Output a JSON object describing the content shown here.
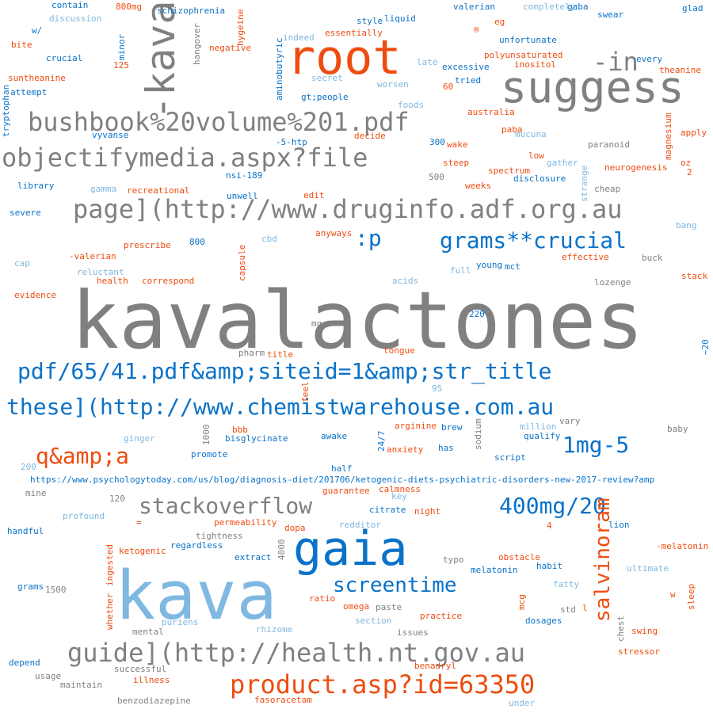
{
  "palette": {
    "gray": "#808080",
    "blue": "#0a72c8",
    "lightblue": "#7fb8e0",
    "orange": "#ee4d10"
  },
  "words": [
    {
      "text": "kavalactones",
      "color": "gray"
    },
    {
      "text": "kava",
      "color": "lightblue"
    },
    {
      "text": "root",
      "color": "orange"
    },
    {
      "text": "suggess",
      "color": "gray"
    },
    {
      "text": "-kava",
      "color": "gray"
    },
    {
      "text": "gaia",
      "color": "blue"
    },
    {
      "text": "-in",
      "color": "gray"
    },
    {
      "text": "bushbook%20volume%201.pdf",
      "color": "gray"
    },
    {
      "text": "objectifymedia.aspx?file",
      "color": "gray"
    },
    {
      "text": "page](http://www.druginfo.adf.org.au",
      "color": "gray"
    },
    {
      "text": ":p",
      "color": "blue"
    },
    {
      "text": "grams**crucial",
      "color": "blue"
    },
    {
      "text": "pdf/65/41.pdf&amp;siteid=1&amp;str_title",
      "color": "blue"
    },
    {
      "text": "these](http://www.chemistwarehouse.com.au",
      "color": "blue"
    },
    {
      "text": "q&amp;a",
      "color": "orange"
    },
    {
      "text": "1mg-5",
      "color": "blue"
    },
    {
      "text": "stackoverflow",
      "color": "gray"
    },
    {
      "text": "400mg/20",
      "color": "blue"
    },
    {
      "text": "salvinoram",
      "color": "orange"
    },
    {
      "text": "screentime",
      "color": "blue"
    },
    {
      "text": "guide](http://health.nt.gov.au",
      "color": "gray"
    },
    {
      "text": "product.asp?id=63350",
      "color": "orange"
    },
    {
      "text": "https://www.psychologytoday.com/us/blog/diagnosis-diet/201706/ketogenic-diets-psychiatric-disorders-new-2017-review?amp",
      "color": "blue"
    },
    {
      "text": "contain",
      "color": "blue"
    },
    {
      "text": "800mg",
      "color": "orange"
    },
    {
      "text": "schizophrenia",
      "color": "blue"
    },
    {
      "text": "discussion",
      "color": "lightblue"
    },
    {
      "text": "w/",
      "color": "blue"
    },
    {
      "text": "bite",
      "color": "orange"
    },
    {
      "text": "crucial",
      "color": "blue"
    },
    {
      "text": "125",
      "color": "orange"
    },
    {
      "text": "minor",
      "color": "blue"
    },
    {
      "text": "suntheanine",
      "color": "orange"
    },
    {
      "text": "attempt",
      "color": "blue"
    },
    {
      "text": "tryptophan",
      "color": "blue"
    },
    {
      "text": "hangover",
      "color": "gray"
    },
    {
      "text": "hygeine",
      "color": "orange"
    },
    {
      "text": "negative",
      "color": "orange"
    },
    {
      "text": "aminobutyric",
      "color": "blue"
    },
    {
      "text": "indeed",
      "color": "lightblue"
    },
    {
      "text": "essentially",
      "color": "orange"
    },
    {
      "text": "style",
      "color": "blue"
    },
    {
      "text": "liquid",
      "color": "blue"
    },
    {
      "text": "®",
      "color": "orange"
    },
    {
      "text": "valerian",
      "color": "blue"
    },
    {
      "text": "completely",
      "color": "lightblue"
    },
    {
      "text": "gaba",
      "color": "blue"
    },
    {
      "text": "swear",
      "color": "blue"
    },
    {
      "text": "glad",
      "color": "blue"
    },
    {
      "text": "eg",
      "color": "orange"
    },
    {
      "text": "unfortunate",
      "color": "blue"
    },
    {
      "text": "polyunsaturated",
      "color": "orange"
    },
    {
      "text": "every",
      "color": "blue"
    },
    {
      "text": "theanine",
      "color": "orange"
    },
    {
      "text": "late",
      "color": "lightblue"
    },
    {
      "text": "excessive",
      "color": "blue"
    },
    {
      "text": "inositol",
      "color": "orange"
    },
    {
      "text": "secret",
      "color": "lightblue"
    },
    {
      "text": "worsen",
      "color": "lightblue"
    },
    {
      "text": "60",
      "color": "orange"
    },
    {
      "text": "tried",
      "color": "blue"
    },
    {
      "text": "gt;people",
      "color": "blue"
    },
    {
      "text": "foods",
      "color": "lightblue"
    },
    {
      "text": "australia",
      "color": "orange"
    },
    {
      "text": "magnesium",
      "color": "orange"
    },
    {
      "text": "paba",
      "color": "orange"
    },
    {
      "text": "mucuna",
      "color": "lightblue"
    },
    {
      "text": "apply",
      "color": "orange"
    },
    {
      "text": "vyvanse",
      "color": "blue"
    },
    {
      "text": "-5-htp",
      "color": "blue"
    },
    {
      "text": "decide",
      "color": "orange"
    },
    {
      "text": "300",
      "color": "blue"
    },
    {
      "text": "wake",
      "color": "orange"
    },
    {
      "text": "paranoid",
      "color": "gray"
    },
    {
      "text": "low",
      "color": "orange"
    },
    {
      "text": "oz",
      "color": "orange"
    },
    {
      "text": "2",
      "color": "orange"
    },
    {
      "text": "gather",
      "color": "lightblue"
    },
    {
      "text": "steep",
      "color": "orange"
    },
    {
      "text": "neurogenesis",
      "color": "orange"
    },
    {
      "text": "spectrum",
      "color": "orange"
    },
    {
      "text": "disclosure",
      "color": "blue"
    },
    {
      "text": "500",
      "color": "gray"
    },
    {
      "text": "nsi-189",
      "color": "blue"
    },
    {
      "text": "strange",
      "color": "lightblue"
    },
    {
      "text": "library",
      "color": "blue"
    },
    {
      "text": "gamma",
      "color": "lightblue"
    },
    {
      "text": "recreational",
      "color": "orange"
    },
    {
      "text": "weeks",
      "color": "orange"
    },
    {
      "text": "cheap",
      "color": "gray"
    },
    {
      "text": "severe",
      "color": "blue"
    },
    {
      "text": "unwell",
      "color": "blue"
    },
    {
      "text": "edit",
      "color": "orange"
    },
    {
      "text": "anyways",
      "color": "orange"
    },
    {
      "text": "bang",
      "color": "lightblue"
    },
    {
      "text": "cbd",
      "color": "lightblue"
    },
    {
      "text": "800",
      "color": "blue"
    },
    {
      "text": "prescribe",
      "color": "orange"
    },
    {
      "text": "-valerian",
      "color": "orange"
    },
    {
      "text": "capsule",
      "color": "orange"
    },
    {
      "text": "effective",
      "color": "orange"
    },
    {
      "text": "buck",
      "color": "gray"
    },
    {
      "text": "cap",
      "color": "lightblue"
    },
    {
      "text": "young",
      "color": "blue"
    },
    {
      "text": "mct",
      "color": "blue"
    },
    {
      "text": "reluctant",
      "color": "lightblue"
    },
    {
      "text": "full",
      "color": "lightblue"
    },
    {
      "text": "stack",
      "color": "orange"
    },
    {
      "text": "health",
      "color": "orange"
    },
    {
      "text": "correspond",
      "color": "orange"
    },
    {
      "text": "acids",
      "color": "lightblue"
    },
    {
      "text": "lozenge",
      "color": "gray"
    },
    {
      "text": "evidence",
      "color": "orange"
    },
    {
      "text": "220",
      "color": "blue"
    },
    {
      "text": "mg",
      "color": "gray"
    },
    {
      "text": "~20",
      "color": "blue"
    },
    {
      "text": "pharm",
      "color": "gray"
    },
    {
      "text": "title",
      "color": "orange"
    },
    {
      "text": "tongue",
      "color": "orange"
    },
    {
      "text": "95",
      "color": "lightblue"
    },
    {
      "text": "feel",
      "color": "orange"
    },
    {
      "text": "bbb",
      "color": "orange"
    },
    {
      "text": "arginine",
      "color": "orange"
    },
    {
      "text": "brew",
      "color": "blue"
    },
    {
      "text": "million",
      "color": "lightblue"
    },
    {
      "text": "vary",
      "color": "gray"
    },
    {
      "text": "baby",
      "color": "gray"
    },
    {
      "text": "ginger",
      "color": "lightblue"
    },
    {
      "text": "1000",
      "color": "gray"
    },
    {
      "text": "bisglycinate",
      "color": "blue"
    },
    {
      "text": "awake",
      "color": "blue"
    },
    {
      "text": "24/7",
      "color": "blue"
    },
    {
      "text": "sodium",
      "color": "gray"
    },
    {
      "text": "qualify",
      "color": "blue"
    },
    {
      "text": "promote",
      "color": "blue"
    },
    {
      "text": "anxiety",
      "color": "orange"
    },
    {
      "text": "has",
      "color": "blue"
    },
    {
      "text": "script",
      "color": "blue"
    },
    {
      "text": "200",
      "color": "lightblue"
    },
    {
      "text": "half",
      "color": "blue"
    },
    {
      "text": "mine",
      "color": "gray"
    },
    {
      "text": "guarantee",
      "color": "orange"
    },
    {
      "text": "calmness",
      "color": "orange"
    },
    {
      "text": "key",
      "color": "lightblue"
    },
    {
      "text": "120",
      "color": "gray"
    },
    {
      "text": "profound",
      "color": "lightblue"
    },
    {
      "text": "=",
      "color": "orange"
    },
    {
      "text": "citrate",
      "color": "blue"
    },
    {
      "text": "night",
      "color": "orange"
    },
    {
      "text": "permeability",
      "color": "orange"
    },
    {
      "text": "dopa",
      "color": "orange"
    },
    {
      "text": "redditor",
      "color": "lightblue"
    },
    {
      "text": "4",
      "color": "orange"
    },
    {
      "text": "lion",
      "color": "blue"
    },
    {
      "text": "handful",
      "color": "blue"
    },
    {
      "text": "tightness",
      "color": "gray"
    },
    {
      "text": "regardless",
      "color": "blue"
    },
    {
      "text": "4000",
      "color": "gray"
    },
    {
      "text": "ketogenic",
      "color": "orange"
    },
    {
      "text": "-melatonin",
      "color": "orange"
    },
    {
      "text": "extract",
      "color": "blue"
    },
    {
      "text": "typo",
      "color": "gray"
    },
    {
      "text": "obstacle",
      "color": "orange"
    },
    {
      "text": "ingested",
      "color": "orange"
    },
    {
      "text": "habit",
      "color": "blue"
    },
    {
      "text": "melatonin",
      "color": "blue"
    },
    {
      "text": "ultimate",
      "color": "lightblue"
    },
    {
      "text": "grams",
      "color": "blue"
    },
    {
      "text": "1500",
      "color": "gray"
    },
    {
      "text": "fatty",
      "color": "lightblue"
    },
    {
      "text": "w",
      "color": "orange"
    },
    {
      "text": "sleep",
      "color": "orange"
    },
    {
      "text": "ratio",
      "color": "orange"
    },
    {
      "text": "omega",
      "color": "orange"
    },
    {
      "text": "paste",
      "color": "gray"
    },
    {
      "text": "mcg",
      "color": "orange"
    },
    {
      "text": "l",
      "color": "orange"
    },
    {
      "text": "std",
      "color": "gray"
    },
    {
      "text": "whether",
      "color": "orange"
    },
    {
      "text": "practice",
      "color": "orange"
    },
    {
      "text": "section",
      "color": "lightblue"
    },
    {
      "text": "dosages",
      "color": "blue"
    },
    {
      "text": "puriens",
      "color": "lightblue"
    },
    {
      "text": "chest",
      "color": "gray"
    },
    {
      "text": "mental",
      "color": "gray"
    },
    {
      "text": "rhizome",
      "color": "lightblue"
    },
    {
      "text": "issues",
      "color": "gray"
    },
    {
      "text": "swing",
      "color": "orange"
    },
    {
      "text": "stressor",
      "color": "orange"
    },
    {
      "text": "depend",
      "color": "blue"
    },
    {
      "text": "successful",
      "color": "gray"
    },
    {
      "text": "benadryl",
      "color": "orange"
    },
    {
      "text": "usage",
      "color": "gray"
    },
    {
      "text": "illness",
      "color": "orange"
    },
    {
      "text": "maintain",
      "color": "gray"
    },
    {
      "text": "benzodiazepine",
      "color": "gray"
    },
    {
      "text": "fasoracetam",
      "color": "orange"
    },
    {
      "text": "under",
      "color": "lightblue"
    }
  ]
}
